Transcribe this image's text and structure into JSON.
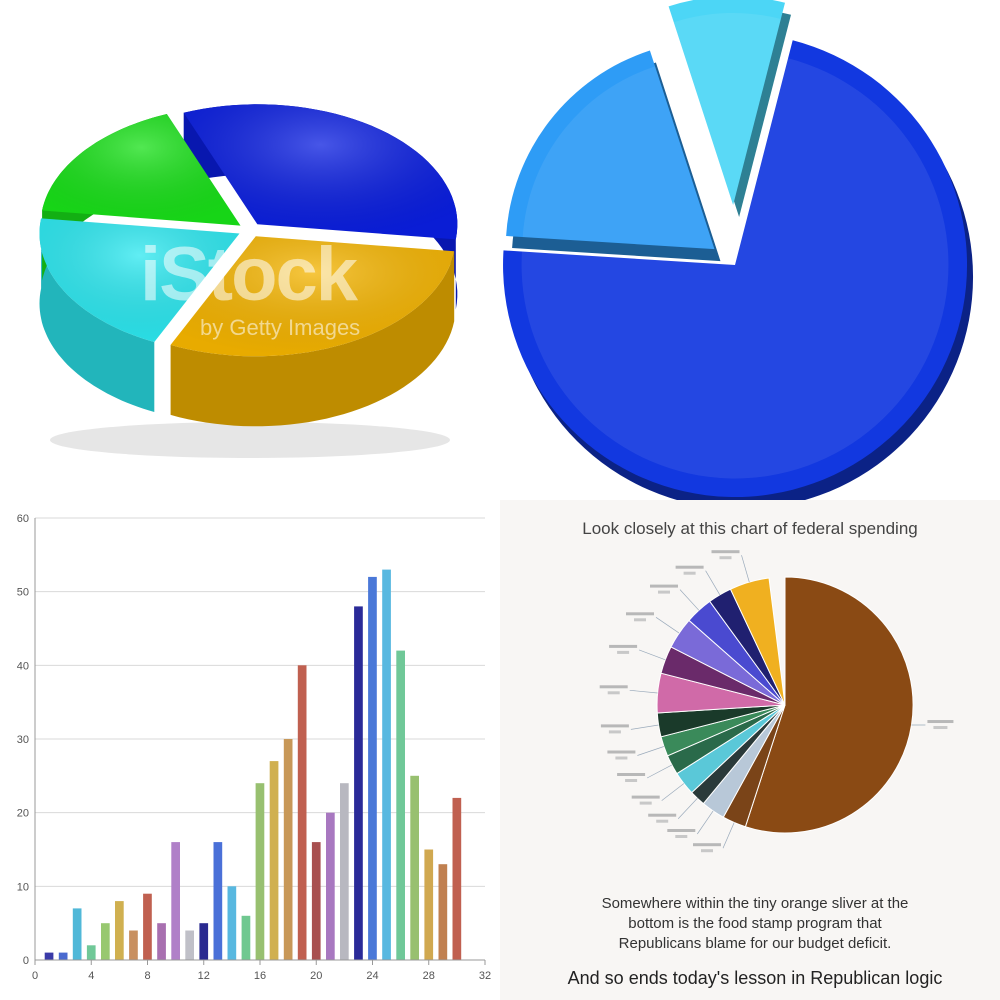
{
  "chart_data": [
    {
      "type": "pie",
      "variant": "3d-exploded",
      "slices": [
        {
          "color": "#0a1ee0",
          "share": 0.33
        },
        {
          "color": "#f4b400",
          "share": 0.3
        },
        {
          "color": "#2ce8f0",
          "share": 0.2
        },
        {
          "color": "#18e018",
          "share": 0.17
        }
      ],
      "watermark": {
        "main": "iStock",
        "sub": "by Getty Images"
      }
    },
    {
      "type": "pie",
      "variant": "3d-exploded",
      "slices": [
        {
          "color": "#1238e0",
          "share": 0.72
        },
        {
          "color": "#2e9cf6",
          "share": 0.19
        },
        {
          "color": "#4cd6f6",
          "share": 0.09
        }
      ]
    },
    {
      "type": "bar",
      "x": [
        1,
        2,
        3,
        4,
        5,
        6,
        7,
        8,
        9,
        10,
        11,
        12,
        13,
        14,
        15,
        16,
        17,
        18,
        19,
        20,
        21,
        22,
        23,
        24,
        25,
        26,
        27,
        28,
        29,
        30
      ],
      "values": [
        1,
        1,
        7,
        2,
        5,
        8,
        4,
        9,
        5,
        16,
        4,
        5,
        16,
        10,
        6,
        24,
        27,
        30,
        40,
        16,
        20,
        24,
        48,
        52,
        53,
        42,
        25,
        15,
        13,
        22
      ],
      "colors": [
        "#3a3aa8",
        "#4a6ad0",
        "#50b8d8",
        "#70c898",
        "#98c870",
        "#d0b050",
        "#c89060",
        "#c06050",
        "#a870b0",
        "#b080c8",
        "#c0c0c8",
        "#2a2a90",
        "#4a70d8",
        "#58b8e0",
        "#70c890",
        "#98c070",
        "#d0b050",
        "#c89858",
        "#c06050",
        "#a85050",
        "#a878c0",
        "#b8b8c0",
        "#2a2a98",
        "#4a78d8",
        "#58b8e0",
        "#70c898",
        "#98c070",
        "#d0a850",
        "#c08050",
        "#c06050"
      ],
      "xlim": [
        0,
        32
      ],
      "ylim": [
        0,
        60
      ],
      "xticks": [
        "0",
        "4",
        "8",
        "12",
        "16",
        "20",
        "24",
        "28",
        "32"
      ],
      "yticks": [
        "0",
        "10",
        "20",
        "30",
        "40",
        "50",
        "60"
      ],
      "grid": true
    },
    {
      "type": "pie",
      "title": "Look closely at this chart of federal spending",
      "slices": [
        {
          "color": "#8a4a14",
          "share": 0.55
        },
        {
          "color": "#7a4418",
          "share": 0.03
        },
        {
          "color": "#b8c8d8",
          "share": 0.03
        },
        {
          "color": "#2a3a3a",
          "share": 0.02
        },
        {
          "color": "#5ac8d8",
          "share": 0.03
        },
        {
          "color": "#2a6a4a",
          "share": 0.025
        },
        {
          "color": "#3a8a5a",
          "share": 0.025
        },
        {
          "color": "#1a3a2a",
          "share": 0.03
        },
        {
          "color": "#d06aa8",
          "share": 0.05
        },
        {
          "color": "#6a2a6a",
          "share": 0.035
        },
        {
          "color": "#7a6ad8",
          "share": 0.04
        },
        {
          "color": "#4a4ad0",
          "share": 0.035
        },
        {
          "color": "#202070",
          "share": 0.03
        },
        {
          "color": "#f0b020",
          "share": 0.05
        }
      ],
      "caption": [
        "Somewhere within the tiny orange sliver at the",
        "bottom is the food stamp program that",
        "Republicans blame for our budget deficit."
      ],
      "caption_final": "And so ends today's lesson in Republican logic"
    }
  ]
}
